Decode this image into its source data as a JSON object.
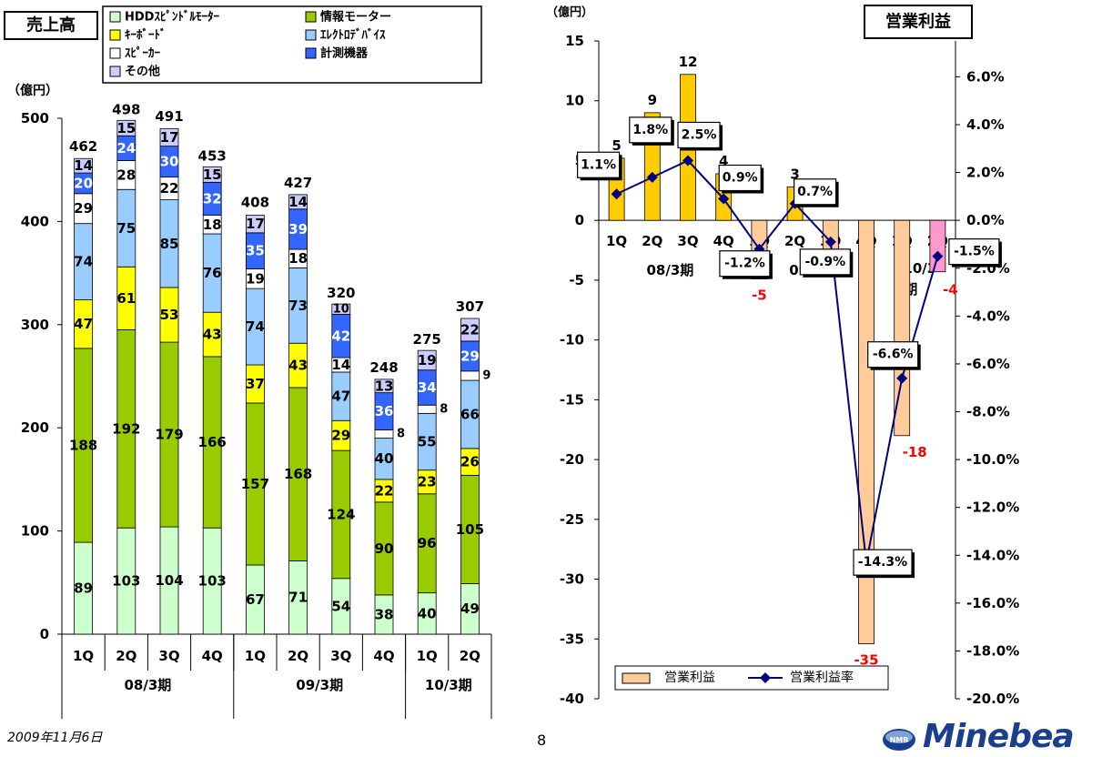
{
  "left_chart": {
    "title": "売上高",
    "unit": "（億円）",
    "legend": [
      {
        "name": "HDDｽﾋﾟﾝﾄﾞﾙﾓｰﾀｰ",
        "color": "#CCFFCC"
      },
      {
        "name": "情報モーター",
        "color": "#99CC00"
      },
      {
        "name": "ｷｰﾎﾞｰﾄﾞ",
        "color": "#FFFF00"
      },
      {
        "name": "ｴﾚｸﾄﾛﾃﾞﾊﾞｲｽ",
        "color": "#99CCFF"
      },
      {
        "name": "ｽﾋﾟｰｶｰ",
        "color": "#FFFFFF"
      },
      {
        "name": "計測機器",
        "color": "#3366FF"
      },
      {
        "name": "その他",
        "color": "#CCCCFF"
      }
    ]
  },
  "right_chart": {
    "title": "営業利益",
    "unit": "（億円）",
    "legend_bar": "営業利益",
    "legend_line": "営業利益率"
  },
  "footer": {
    "date": "2009年11月6日",
    "page": "8",
    "logo": "Minebea",
    "logo_emblem": "NMB"
  },
  "chart_data": [
    {
      "type": "bar",
      "stacked": true,
      "title": "売上高",
      "ylabel": "（億円）",
      "ylim": [
        0,
        500
      ],
      "yticks": [
        0,
        100,
        200,
        300,
        400,
        500
      ],
      "categories": [
        "1Q",
        "2Q",
        "3Q",
        "4Q",
        "1Q",
        "2Q",
        "3Q",
        "4Q",
        "1Q",
        "2Q"
      ],
      "groups": [
        {
          "label": "08/3期",
          "start": 0,
          "end": 3
        },
        {
          "label": "09/3期",
          "start": 4,
          "end": 7
        },
        {
          "label": "10/3期",
          "start": 8,
          "end": 9
        }
      ],
      "series": [
        {
          "name": "HDDｽﾋﾟﾝﾄﾞﾙﾓｰﾀｰ",
          "color": "#CCFFCC",
          "values": [
            89,
            103,
            104,
            103,
            67,
            71,
            54,
            38,
            40,
            49
          ]
        },
        {
          "name": "情報モーター",
          "color": "#99CC00",
          "values": [
            188,
            192,
            179,
            166,
            157,
            168,
            124,
            90,
            96,
            105
          ]
        },
        {
          "name": "ｷｰﾎﾞｰﾄﾞ",
          "color": "#FFFF00",
          "values": [
            47,
            61,
            53,
            43,
            37,
            43,
            29,
            22,
            23,
            26
          ]
        },
        {
          "name": "ｴﾚｸﾄﾛﾃﾞﾊﾞｲｽ",
          "color": "#99CCFF",
          "values": [
            74,
            75,
            85,
            76,
            74,
            73,
            47,
            40,
            55,
            66
          ]
        },
        {
          "name": "ｽﾋﾟｰｶｰ",
          "color": "#FFFFFF",
          "values": [
            29,
            28,
            22,
            18,
            19,
            18,
            14,
            8,
            8,
            9
          ]
        },
        {
          "name": "計測機器",
          "color": "#3366FF",
          "values": [
            20,
            24,
            30,
            32,
            35,
            39,
            42,
            36,
            34,
            29
          ]
        },
        {
          "name": "その他",
          "color": "#CCCCFF",
          "values": [
            14,
            15,
            17,
            15,
            17,
            14,
            10,
            13,
            19,
            22
          ]
        }
      ],
      "totals": [
        462,
        498,
        491,
        453,
        408,
        427,
        320,
        248,
        275,
        307
      ]
    },
    {
      "type": "bar+line",
      "title": "営業利益",
      "ylabel": "（億円）",
      "ylim": [
        -40,
        15
      ],
      "yticks": [
        -40,
        -35,
        -30,
        -25,
        -20,
        -15,
        -10,
        -5,
        0,
        5,
        10,
        15
      ],
      "y2lim": [
        -20,
        7.5
      ],
      "y2ticks": [
        "-20.0%",
        "-18.0%",
        "-16.0%",
        "-14.0%",
        "-12.0%",
        "-10.0%",
        "-8.0%",
        "-6.0%",
        "-4.0%",
        "-2.0%",
        "0.0%",
        "2.0%",
        "4.0%",
        "6.0%"
      ],
      "categories": [
        "1Q",
        "2Q",
        "3Q",
        "4Q",
        "1Q",
        "2Q",
        "3Q",
        "4Q",
        "1Q",
        "2Q"
      ],
      "groups": [
        {
          "label": "08/3期",
          "start": 0,
          "end": 3
        },
        {
          "label": "09/3期",
          "start": 4,
          "end": 7
        },
        {
          "label": "10/3期",
          "start": 8,
          "end": 9
        }
      ],
      "series": [
        {
          "name": "営業利益",
          "kind": "bar",
          "values": [
            5.2,
            9,
            12.2,
            3.9,
            -4.9,
            2.8,
            -2.9,
            -35.4,
            -18,
            -4.3
          ],
          "labels": [
            "5",
            "9",
            "12",
            "4",
            "-5",
            "3",
            "-3",
            "-35",
            "-18",
            "-4"
          ],
          "colors": [
            "#FFCC00",
            "#FFCC00",
            "#FFCC00",
            "#FFCC00",
            "#FFCC99",
            "#FFCC00",
            "#FFCC99",
            "#FFCC99",
            "#FFCC99",
            "#FF99CC"
          ]
        },
        {
          "name": "営業利益率",
          "kind": "line",
          "values": [
            1.1,
            1.8,
            2.5,
            0.9,
            -1.2,
            0.7,
            -0.9,
            -14.3,
            -6.6,
            -1.5
          ],
          "labels": [
            "1.1%",
            "1.8%",
            "2.5%",
            "0.9%",
            "-1.2%",
            "0.7%",
            "-0.9%",
            "-14.3%",
            "-6.6%",
            "-1.5%"
          ]
        }
      ]
    }
  ]
}
